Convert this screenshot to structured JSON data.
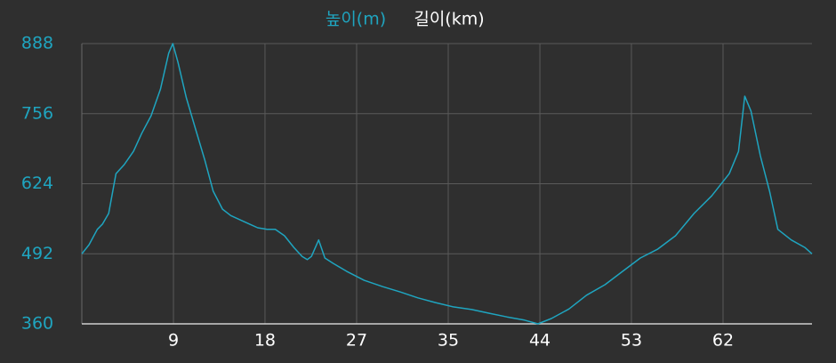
{
  "chart_data": {
    "type": "line",
    "x_label": "길이(km)",
    "x": [
      0,
      0.7,
      1.5,
      2.0,
      2.6,
      3.3,
      4.1,
      5.0,
      5.8,
      6.7,
      7.6,
      8.4,
      8.8,
      9.3,
      10.1,
      11.0,
      11.9,
      12.7,
      13.6,
      14.4,
      15.3,
      16.2,
      17.0,
      17.9,
      18.7,
      19.6,
      20.5,
      21.3,
      21.8,
      22.2,
      22.9,
      23.5,
      24.3,
      25.6,
      27.3,
      29.1,
      30.8,
      32.5,
      34.2,
      35.9,
      37.7,
      39.4,
      41.1,
      42.8,
      44.1,
      45.4,
      47.1,
      48.8,
      50.6,
      52.3,
      54.0,
      55.7,
      57.4,
      59.2,
      60.9,
      62.6,
      63.5,
      64.1,
      64.7,
      65.6,
      66.5,
      67.3,
      68.6,
      69.9,
      70.6
    ],
    "series": [
      {
        "name": "높이(m)",
        "color": "#1fa5c0",
        "values": [
          492,
          509,
          538,
          548,
          568,
          643,
          660,
          685,
          719,
          752,
          802,
          870,
          888,
          853,
          786,
          727,
          668,
          610,
          576,
          564,
          556,
          548,
          541,
          538,
          538,
          526,
          504,
          487,
          481,
          487,
          518,
          484,
          474,
          459,
          442,
          430,
          420,
          409,
          400,
          392,
          387,
          380,
          373,
          367,
          360,
          370,
          388,
          414,
          434,
          459,
          484,
          501,
          526,
          568,
          601,
          643,
          685,
          789,
          761,
          677,
          610,
          538,
          518,
          504,
          492
        ]
      }
    ],
    "xlim": [
      0,
      70.6
    ],
    "xticks": [
      {
        "value": 8.86,
        "label": "9"
      },
      {
        "value": 17.71,
        "label": "18"
      },
      {
        "value": 26.57,
        "label": "27"
      },
      {
        "value": 35.43,
        "label": "35"
      },
      {
        "value": 44.29,
        "label": "44"
      },
      {
        "value": 53.14,
        "label": "53"
      },
      62
    ],
    "ylim": [
      360,
      888
    ],
    "yticks": [
      360,
      492,
      624,
      756,
      888
    ],
    "grid": true
  }
}
